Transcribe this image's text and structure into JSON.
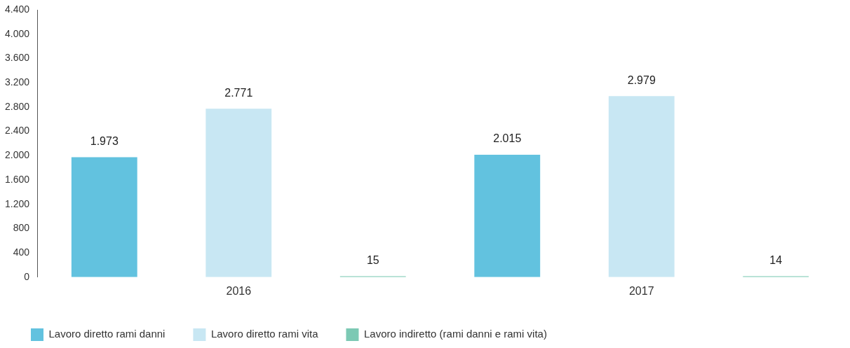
{
  "chart_data": {
    "type": "bar",
    "categories": [
      "2016",
      "2017"
    ],
    "series": [
      {
        "name": "Lavoro diretto rami danni",
        "color": "#62c2df",
        "values": [
          1973,
          2015
        ],
        "value_labels": [
          "1.973",
          "2.015"
        ]
      },
      {
        "name": "Lavoro diretto rami vita",
        "color": "#c8e7f3",
        "values": [
          2771,
          2979
        ],
        "value_labels": [
          "2.771",
          "2.979"
        ]
      },
      {
        "name": "Lavoro indiretto (rami danni e rami vita)",
        "color": "#7cc9b4",
        "values": [
          15,
          14
        ],
        "value_labels": [
          "15",
          "14"
        ]
      }
    ],
    "ylim": [
      0,
      4400
    ],
    "yticks": [
      0,
      {
        "value": 400,
        "label": "400"
      },
      {
        "value": 800,
        "label": "800"
      },
      {
        "value": 1200,
        "label": "1.200"
      },
      {
        "value": 1600,
        "label": "1.600"
      },
      {
        "value": 2000,
        "label": "2.000"
      },
      {
        "value": 2400,
        "label": "2.400"
      },
      {
        "value": 2800,
        "label": "2.800"
      },
      {
        "value": 3200,
        "label": "3.200"
      },
      {
        "value": 3600,
        "label": "3.600"
      },
      {
        "value": 4000,
        "label": "4.000"
      },
      {
        "value": 4400,
        "label": "4.400"
      }
    ],
    "grid": false,
    "legend": "bottom left"
  }
}
